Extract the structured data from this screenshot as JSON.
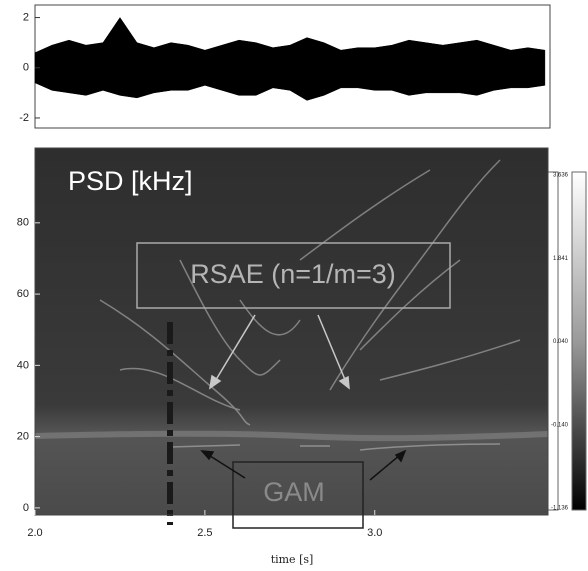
{
  "chart_data": [
    {
      "type": "band",
      "x": [
        2.0,
        2.05,
        2.1,
        2.15,
        2.2,
        2.25,
        2.3,
        2.35,
        2.4,
        2.45,
        2.5,
        2.55,
        2.6,
        2.65,
        2.7,
        2.75,
        2.8,
        2.85,
        2.9,
        2.95,
        3.0,
        3.05,
        3.1,
        3.15,
        3.2,
        3.25,
        3.3,
        3.35,
        3.4,
        3.45,
        3.5
      ],
      "high": [
        0.6,
        0.9,
        1.1,
        0.9,
        1.0,
        2.0,
        1.0,
        0.8,
        1.0,
        0.9,
        0.7,
        0.9,
        1.1,
        1.0,
        0.8,
        0.9,
        1.2,
        1.0,
        0.7,
        0.8,
        0.8,
        0.9,
        1.1,
        1.0,
        0.9,
        1.0,
        1.1,
        0.9,
        0.7,
        0.8,
        0.7
      ],
      "low": [
        -0.6,
        -0.9,
        -1.0,
        -1.1,
        -0.9,
        -1.1,
        -1.2,
        -1.0,
        -0.9,
        -0.9,
        -0.7,
        -0.9,
        -1.1,
        -1.1,
        -0.8,
        -0.9,
        -1.3,
        -1.1,
        -0.8,
        -0.8,
        -0.9,
        -0.9,
        -1.1,
        -1.0,
        -1.0,
        -1.0,
        -1.1,
        -0.9,
        -0.8,
        -0.8,
        -0.7
      ],
      "xlim": [
        2.0,
        3.515
      ],
      "ylim": [
        -2.4,
        2.5
      ],
      "yticks": [
        -2,
        0,
        2
      ],
      "color": "#000000"
    },
    {
      "type": "spectrogram",
      "title": "PSD [kHz]",
      "x_label": "time [s]",
      "xlim": [
        2.0,
        3.51
      ],
      "ylim": [
        -2,
        101
      ],
      "xticks": [
        {
          "value": 2.0,
          "label": "2.0"
        },
        2.5,
        {
          "value": 3.0,
          "label": "3.0"
        }
      ],
      "yticks": [
        0,
        20,
        40,
        60,
        80
      ],
      "colorbar_labels": [
        "3.636",
        "1.841",
        "0.040",
        "-0.140",
        "-1.136"
      ],
      "annotations": [
        "RSAE (n=1/m=3)",
        "GAM"
      ]
    }
  ]
}
